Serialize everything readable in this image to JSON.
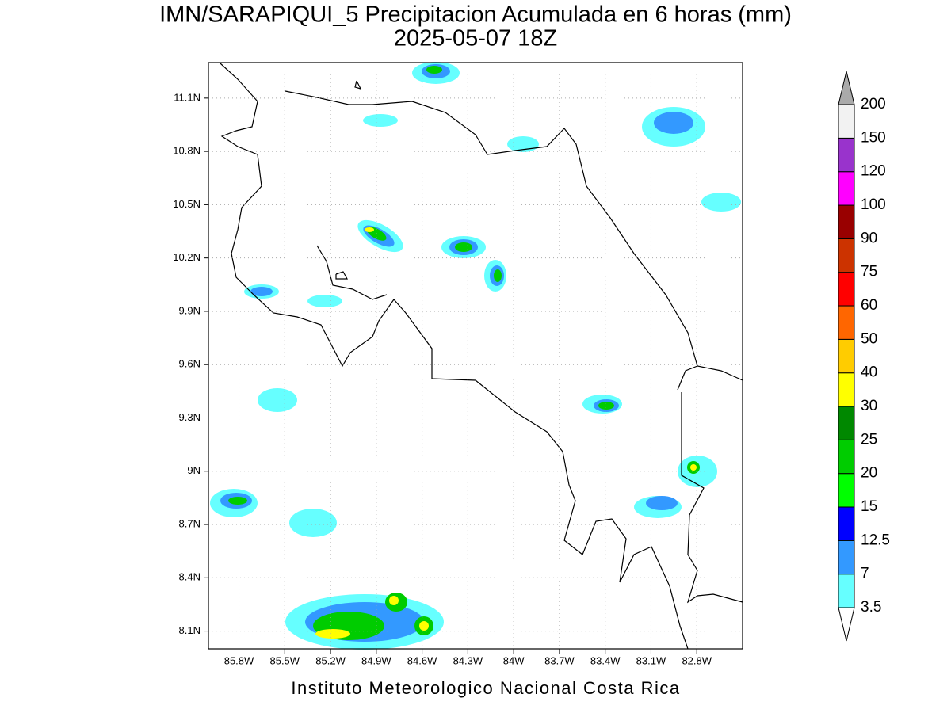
{
  "title": "IMN/SARAPIQUI_5 Precipitacion Acumulada en 6 horas (mm)",
  "subtitle": "2025-05-07 18Z",
  "footer": "Instituto Meteorologico Nacional Costa Rica",
  "map": {
    "xlim": [
      -86.0,
      -82.5
    ],
    "ylim": [
      8.0,
      11.3
    ],
    "xticks": [
      {
        "value": -85.8,
        "label": "85.8W"
      },
      {
        "value": -85.5,
        "label": "85.5W"
      },
      {
        "value": -85.2,
        "label": "85.2W"
      },
      {
        "value": -84.9,
        "label": "84.9W"
      },
      {
        "value": -84.6,
        "label": "84.6W"
      },
      {
        "value": -84.3,
        "label": "84.3W"
      },
      {
        "value": -84,
        "label": "84W"
      },
      {
        "value": -83.7,
        "label": "83.7W"
      },
      {
        "value": -83.4,
        "label": "83.4W"
      },
      {
        "value": -83.1,
        "label": "83.1W"
      },
      {
        "value": -82.8,
        "label": "82.8W"
      }
    ],
    "yticks": [
      {
        "value": 8.1,
        "label": "8.1N"
      },
      {
        "value": 8.4,
        "label": "8.4N"
      },
      {
        "value": 8.7,
        "label": "8.7N"
      },
      {
        "value": 9,
        "label": "9N"
      },
      {
        "value": 9.3,
        "label": "9.3N"
      },
      {
        "value": 9.6,
        "label": "9.6N"
      },
      {
        "value": 9.9,
        "label": "9.9N"
      },
      {
        "value": 10.2,
        "label": "10.2N"
      },
      {
        "value": 10.5,
        "label": "10.5N"
      },
      {
        "value": 10.8,
        "label": "10.8N"
      },
      {
        "value": 11.1,
        "label": "11.1N"
      }
    ]
  },
  "colorbar": {
    "levels": [
      3.5,
      7,
      12.5,
      15,
      20,
      25,
      30,
      40,
      50,
      60,
      75,
      90,
      100,
      120,
      150,
      200
    ],
    "colors": [
      "#66ffff",
      "#3399ff",
      "#0000ff",
      "#00ff00",
      "#00cc00",
      "#008800",
      "#ffff00",
      "#ffcc00",
      "#ff6600",
      "#ff0000",
      "#cc3300",
      "#990000",
      "#ff00ff",
      "#9933cc",
      "#f2f2f2"
    ],
    "below_color": "#ffffff",
    "above_color": "#aaaaaa"
  }
}
